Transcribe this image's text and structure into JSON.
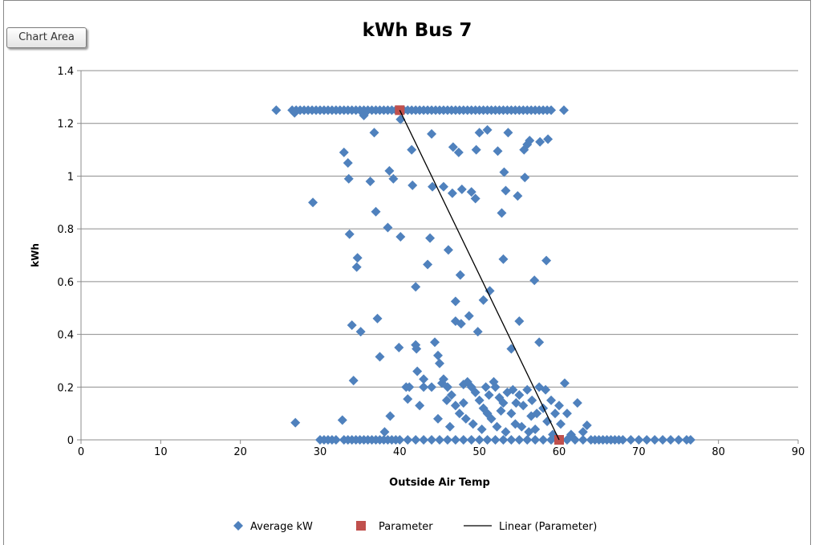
{
  "tooltip": "Chart Area",
  "chart_data": {
    "type": "scatter",
    "title": "kWh Bus 7",
    "x_label": "Outside Air Temp",
    "y_label": "kWh",
    "xlim": [
      0,
      90
    ],
    "xticks": [
      0,
      10,
      20,
      30,
      40,
      50,
      60,
      70,
      80,
      90
    ],
    "ylim": [
      0,
      1.4
    ],
    "yticks": [
      0,
      0.2,
      0.4,
      0.6,
      0.8,
      1,
      1.2,
      1.4
    ],
    "grid": true,
    "legend": "bottom",
    "series": [
      {
        "name": "Average kW",
        "color": "#4f81bd",
        "style": "diamond",
        "x": [
          24.5,
          26.5,
          27,
          27.5,
          28,
          28.5,
          29,
          29.5,
          30,
          30.5,
          31,
          31.5,
          32,
          32.5,
          33,
          33.5,
          34,
          34.5,
          35,
          35.5,
          36,
          36.5,
          37,
          37.5,
          38,
          38.5,
          39,
          39.5,
          40.5,
          41,
          41.5,
          42,
          42.5,
          43,
          43.5,
          44,
          44.5,
          45,
          45.5,
          46,
          46.5,
          47,
          47.5,
          48,
          48.5,
          49,
          49.5,
          50,
          50.5,
          51,
          51.5,
          52,
          52.5,
          53,
          53.5,
          54,
          54.5,
          55,
          55.5,
          56,
          56.5,
          57,
          57.5,
          58,
          58.5,
          59,
          60.6,
          26.8,
          35.5,
          33,
          30,
          30.5,
          31,
          31.5,
          32,
          33,
          33.5,
          34,
          34.5,
          35,
          35.5,
          36,
          36.5,
          37,
          37.5,
          38,
          38.5,
          39,
          39.5,
          40,
          41,
          42,
          43,
          44,
          45,
          46,
          47,
          48,
          49,
          50,
          51,
          52,
          53,
          54,
          55,
          56,
          57,
          58,
          59,
          61,
          62,
          63,
          64,
          65,
          66,
          67,
          68,
          69,
          70,
          71,
          72,
          73,
          74,
          75,
          76,
          76.5,
          64.5,
          65.5,
          66.5,
          67.5,
          26.9,
          29.1,
          32.8,
          33.5,
          33.6,
          33.7,
          34,
          34.2,
          34.7,
          34.6,
          35.1,
          36.3,
          36.8,
          37,
          37.2,
          37.5,
          38.1,
          38.5,
          38.7,
          38.8,
          39.2,
          39.9,
          40.1,
          40.1,
          40.8,
          41,
          41.5,
          41.6,
          42,
          42,
          42.1,
          42.2,
          43,
          43.5,
          43.8,
          44,
          44.1,
          44.4,
          44.8,
          45,
          45.3,
          45.5,
          45.9,
          46.1,
          46.6,
          46.7,
          47,
          47,
          47.4,
          47.6,
          47.7,
          47.8,
          48.7,
          49,
          49.5,
          49.6,
          49.8,
          50,
          50.5,
          51,
          51.3,
          51.8,
          52.3,
          52.8,
          53,
          53.1,
          53.3,
          53.6,
          54,
          54.8,
          55,
          55.6,
          55.7,
          56,
          56.3,
          56.9,
          57.5,
          57.6,
          58.4,
          58.6,
          60.7,
          62.3,
          63.5,
          63,
          61,
          61.5,
          46,
          46.5,
          47.5,
          48,
          48.5,
          49,
          49.5,
          50,
          50.5,
          51,
          51.5,
          52,
          52.5,
          53,
          53.5,
          54,
          54.5,
          55,
          55.5,
          56,
          56.5,
          57,
          57.5,
          58,
          58.5,
          59,
          59.5,
          60,
          60.2,
          44,
          43,
          45.5,
          46.3,
          47,
          48.3,
          49.2,
          50.3,
          51.2,
          52.2,
          53.3,
          54.6,
          55.3,
          56.6,
          57.2,
          44.8,
          48,
          50.8,
          52.7,
          54.2,
          56.2,
          58.3,
          59.2,
          41.2,
          42.5
        ],
        "values": [
          1.25,
          1.25,
          1.25,
          1.25,
          1.25,
          1.25,
          1.25,
          1.25,
          1.25,
          1.25,
          1.25,
          1.25,
          1.25,
          1.25,
          1.25,
          1.25,
          1.25,
          1.25,
          1.25,
          1.25,
          1.25,
          1.25,
          1.25,
          1.25,
          1.25,
          1.25,
          1.25,
          1.25,
          1.25,
          1.25,
          1.25,
          1.25,
          1.25,
          1.25,
          1.25,
          1.25,
          1.25,
          1.25,
          1.25,
          1.25,
          1.25,
          1.25,
          1.25,
          1.25,
          1.25,
          1.25,
          1.25,
          1.25,
          1.25,
          1.25,
          1.25,
          1.25,
          1.25,
          1.25,
          1.25,
          1.25,
          1.25,
          1.25,
          1.25,
          1.25,
          1.25,
          1.25,
          1.25,
          1.25,
          1.25,
          1.25,
          1.25,
          1.24,
          1.23,
          1.09,
          0,
          0,
          0,
          0,
          0,
          0,
          0,
          0,
          0,
          0,
          0,
          0,
          0,
          0,
          0,
          0,
          0,
          0,
          0,
          0,
          0,
          0,
          0,
          0,
          0,
          0,
          0,
          0,
          0,
          0,
          0,
          0,
          0,
          0,
          0,
          0,
          0,
          0,
          0,
          0,
          0,
          0,
          0,
          0,
          0,
          0,
          0,
          0,
          0,
          0,
          0,
          0,
          0,
          0,
          0,
          0,
          0,
          0,
          0,
          0,
          0.065,
          0.9,
          0.075,
          1.05,
          0.99,
          0.78,
          0.435,
          0.225,
          0.69,
          0.655,
          0.41,
          0.98,
          1.165,
          0.865,
          0.46,
          0.315,
          0.03,
          0.805,
          1.02,
          0.09,
          0.99,
          0.35,
          1.215,
          0.77,
          0.2,
          0.155,
          1.1,
          0.965,
          0.58,
          0.36,
          0.345,
          0.26,
          0.2,
          0.665,
          0.765,
          1.16,
          0.96,
          0.37,
          0.32,
          0.29,
          0.215,
          0.96,
          0.15,
          0.72,
          0.935,
          1.11,
          0.525,
          0.45,
          1.09,
          0.625,
          0.44,
          0.95,
          0.47,
          0.94,
          0.915,
          1.1,
          0.41,
          1.165,
          0.53,
          1.175,
          0.565,
          0.22,
          1.095,
          0.86,
          0.685,
          1.015,
          0.945,
          1.165,
          0.345,
          0.925,
          0.45,
          1.1,
          0.995,
          1.12,
          1.135,
          0.605,
          0.37,
          1.13,
          0.68,
          1.14,
          0.215,
          0.14,
          0.055,
          0.03,
          0.1,
          0.02,
          0.2,
          0.17,
          0.1,
          0.21,
          0.22,
          0.2,
          0.18,
          0.15,
          0.12,
          0.1,
          0.08,
          0.2,
          0.16,
          0.14,
          0.18,
          0.1,
          0.06,
          0.17,
          0.13,
          0.19,
          0.09,
          0.04,
          0.2,
          0.12,
          0.07,
          0.15,
          0.1,
          0.13,
          0.06,
          0.2,
          0.23,
          0.23,
          0.05,
          0.13,
          0.08,
          0.06,
          0.04,
          0.17,
          0.05,
          0.03,
          0.14,
          0.05,
          0.15,
          0.1,
          0.08,
          0.14,
          0.2,
          0.11,
          0.19,
          0.03,
          0.19,
          0.02,
          0.2,
          0.13
        ]
      },
      {
        "name": "Parameter",
        "color": "#c0504d",
        "style": "square",
        "x": [
          40,
          60
        ],
        "values": [
          1.25,
          0
        ]
      },
      {
        "name": "Linear (Parameter)",
        "color": "#000000",
        "style": "line",
        "x": [
          40,
          60
        ],
        "values": [
          1.25,
          0
        ]
      }
    ]
  }
}
